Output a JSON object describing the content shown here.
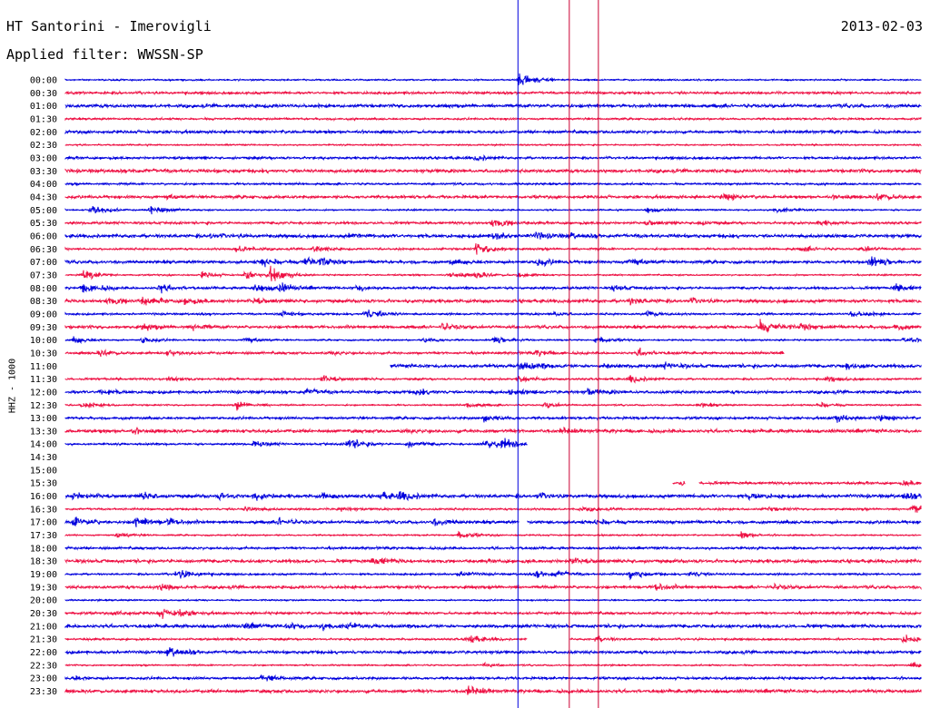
{
  "header": {
    "station": "HT Santorini - Imerovigli",
    "date": "2013-02-03",
    "filter": "Applied filter: WWSSN-SP"
  },
  "colors": {
    "even": "#0000dd",
    "odd": "#ee1144",
    "marker": "#cc0033",
    "background": "#ffffff"
  },
  "chart_data": {
    "type": "line",
    "ylabel": "HHZ - 1000",
    "rows": [
      {
        "t": "00:00",
        "ev": [
          [
            53,
            1.1
          ]
        ]
      },
      {
        "t": "00:30",
        "ev": []
      },
      {
        "t": "01:00",
        "ev": []
      },
      {
        "t": "01:30",
        "ev": []
      },
      {
        "t": "02:00",
        "ev": []
      },
      {
        "t": "02:30",
        "ev": []
      },
      {
        "t": "03:00",
        "ev": [
          [
            48,
            0.4
          ]
        ]
      },
      {
        "t": "03:30",
        "ev": [
          [
            8,
            0.3
          ]
        ]
      },
      {
        "t": "04:00",
        "ev": []
      },
      {
        "t": "04:30",
        "ev": [
          [
            12,
            0.4
          ],
          [
            77,
            0.5
          ],
          [
            90,
            0.4
          ],
          [
            95,
            0.6
          ]
        ]
      },
      {
        "t": "05:00",
        "ev": [
          [
            3,
            0.9
          ],
          [
            10,
            0.8
          ],
          [
            68,
            0.5
          ],
          [
            83,
            0.6
          ]
        ]
      },
      {
        "t": "05:30",
        "ev": [
          [
            50,
            0.8
          ],
          [
            68,
            0.4
          ],
          [
            74,
            0.4
          ],
          [
            88,
            0.4
          ]
        ]
      },
      {
        "t": "06:00",
        "ev": [
          [
            17,
            0.4
          ],
          [
            33,
            0.4
          ],
          [
            50,
            0.6
          ],
          [
            55,
            0.5
          ],
          [
            59,
            0.4
          ]
        ]
      },
      {
        "t": "06:30",
        "ev": [
          [
            20,
            0.7
          ],
          [
            29,
            0.6
          ],
          [
            48,
            0.9
          ],
          [
            86,
            0.5
          ],
          [
            93,
            0.5
          ]
        ]
      },
      {
        "t": "07:00",
        "ev": [
          [
            23,
            0.7
          ],
          [
            28,
            0.7
          ],
          [
            30,
            0.5
          ],
          [
            45,
            0.5
          ],
          [
            55,
            0.6
          ],
          [
            66,
            0.7
          ],
          [
            94,
            0.8
          ]
        ]
      },
      {
        "t": "07:30",
        "ev": [
          [
            2,
            0.8
          ],
          [
            16,
            0.5
          ],
          [
            21,
            0.7
          ],
          [
            24,
            1.0
          ],
          [
            45,
            0.6
          ],
          [
            48,
            0.6
          ],
          [
            53,
            0.5
          ]
        ]
      },
      {
        "t": "08:00",
        "ev": [
          [
            2,
            0.9
          ],
          [
            11,
            0.6
          ],
          [
            22,
            0.8
          ],
          [
            25,
            0.7
          ],
          [
            34,
            0.5
          ],
          [
            64,
            0.5
          ],
          [
            97,
            0.6
          ]
        ]
      },
      {
        "t": "08:30",
        "ev": [
          [
            5,
            0.6
          ],
          [
            9,
            0.5
          ],
          [
            14,
            0.5
          ],
          [
            22,
            0.4
          ],
          [
            66,
            0.6
          ],
          [
            73,
            0.4
          ]
        ]
      },
      {
        "t": "09:00",
        "ev": [
          [
            25,
            0.5
          ],
          [
            35,
            0.9
          ],
          [
            57,
            0.4
          ],
          [
            68,
            0.5
          ],
          [
            92,
            0.6
          ]
        ]
      },
      {
        "t": "09:30",
        "ev": [
          [
            9,
            0.5
          ],
          [
            15,
            0.5
          ],
          [
            44,
            0.6
          ],
          [
            81,
            1.0
          ],
          [
            86,
            0.6
          ],
          [
            97,
            0.5
          ]
        ]
      },
      {
        "t": "10:00",
        "ev": [
          [
            1,
            0.6
          ],
          [
            9,
            0.5
          ],
          [
            21,
            0.6
          ],
          [
            42,
            0.5
          ],
          [
            50,
            0.6
          ],
          [
            62,
            0.6
          ],
          [
            98,
            0.6
          ]
        ]
      },
      {
        "t": "10:30",
        "ev": [
          [
            4,
            0.5
          ],
          [
            12,
            0.5
          ],
          [
            31,
            0.4
          ],
          [
            55,
            0.5
          ],
          [
            67,
            0.6
          ]
        ],
        "gaps": [
          [
            84,
            100
          ]
        ]
      },
      {
        "t": "11:00",
        "ev": [
          [
            53,
            0.8
          ],
          [
            63,
            0.4
          ],
          [
            70,
            0.5
          ],
          [
            91,
            0.6
          ]
        ],
        "gaps": [
          [
            0,
            38
          ]
        ]
      },
      {
        "t": "11:30",
        "ev": [
          [
            12,
            0.5
          ],
          [
            30,
            0.6
          ],
          [
            53,
            0.5
          ],
          [
            66,
            0.6
          ],
          [
            89,
            0.5
          ]
        ]
      },
      {
        "t": "12:00",
        "ev": [
          [
            4,
            0.5
          ],
          [
            28,
            0.5
          ],
          [
            41,
            0.5
          ],
          [
            52,
            0.6
          ],
          [
            61,
            0.6
          ]
        ]
      },
      {
        "t": "12:30",
        "ev": [
          [
            2,
            0.6
          ],
          [
            20,
            0.7
          ],
          [
            47,
            0.5
          ],
          [
            56,
            0.5
          ],
          [
            74,
            0.4
          ],
          [
            88,
            0.5
          ]
        ]
      },
      {
        "t": "13:00",
        "ev": [
          [
            49,
            0.6
          ],
          [
            90,
            0.6
          ],
          [
            95,
            0.5
          ]
        ]
      },
      {
        "t": "13:30",
        "ev": [
          [
            8,
            0.4
          ],
          [
            40,
            0.3
          ],
          [
            58,
            0.4
          ]
        ]
      },
      {
        "t": "14:00",
        "ev": [
          [
            22,
            0.5
          ],
          [
            33,
            0.9
          ],
          [
            40,
            0.6
          ],
          [
            49,
            0.9
          ],
          [
            51,
            0.7
          ]
        ],
        "gaps": [
          [
            54,
            100
          ]
        ]
      },
      {
        "t": "14:30",
        "ev": [],
        "gaps": [
          [
            0,
            100
          ]
        ]
      },
      {
        "t": "15:00",
        "ev": [],
        "gaps": [
          [
            0,
            100
          ]
        ]
      },
      {
        "t": "15:30",
        "ev": [
          [
            72,
            0.4
          ],
          [
            98,
            0.4
          ]
        ],
        "gaps": [
          [
            0,
            71
          ],
          [
            72.5,
            74
          ]
        ]
      },
      {
        "t": "16:00",
        "ev": [
          [
            1,
            0.6
          ],
          [
            9,
            0.5
          ],
          [
            18,
            0.5
          ],
          [
            22,
            0.5
          ],
          [
            30,
            0.5
          ],
          [
            37,
            0.5
          ],
          [
            39,
            0.6
          ],
          [
            55,
            0.5
          ],
          [
            80,
            0.5
          ],
          [
            98,
            0.5
          ]
        ]
      },
      {
        "t": "16:30",
        "ev": [
          [
            21,
            0.5
          ],
          [
            32,
            0.4
          ],
          [
            60,
            0.4
          ],
          [
            82,
            0.4
          ],
          [
            99,
            0.7
          ]
        ]
      },
      {
        "t": "17:00",
        "ev": [
          [
            1,
            0.8
          ],
          [
            8,
            0.9
          ],
          [
            12,
            0.6
          ],
          [
            25,
            0.6
          ],
          [
            43,
            0.6
          ],
          [
            62,
            0.5
          ]
        ],
        "gaps": [
          [
            53,
            54
          ]
        ]
      },
      {
        "t": "17:30",
        "ev": [
          [
            6,
            0.5
          ],
          [
            46,
            0.6
          ],
          [
            79,
            0.5
          ]
        ]
      },
      {
        "t": "18:00",
        "ev": []
      },
      {
        "t": "18:30",
        "ev": [
          [
            36,
            0.6
          ],
          [
            59,
            0.5
          ]
        ]
      },
      {
        "t": "19:00",
        "ev": [
          [
            13,
            0.8
          ],
          [
            46,
            0.5
          ],
          [
            55,
            0.5
          ],
          [
            57,
            0.6
          ],
          [
            66,
            0.7
          ],
          [
            73,
            0.5
          ]
        ]
      },
      {
        "t": "19:30",
        "ev": [
          [
            11,
            0.6
          ],
          [
            69,
            0.6
          ],
          [
            83,
            0.4
          ]
        ]
      },
      {
        "t": "20:00",
        "ev": []
      },
      {
        "t": "20:30",
        "ev": [
          [
            6,
            0.4
          ],
          [
            11,
            0.7
          ],
          [
            13,
            0.6
          ]
        ]
      },
      {
        "t": "21:00",
        "ev": [
          [
            21,
            0.4
          ],
          [
            26,
            0.5
          ],
          [
            30,
            0.5
          ],
          [
            33,
            0.4
          ]
        ]
      },
      {
        "t": "21:30",
        "ev": [
          [
            47,
            0.7
          ],
          [
            62,
            0.5
          ],
          [
            98,
            0.6
          ]
        ],
        "gaps": [
          [
            54,
            59
          ]
        ]
      },
      {
        "t": "22:00",
        "ev": [
          [
            12,
            0.8
          ]
        ]
      },
      {
        "t": "22:30",
        "ev": [
          [
            49,
            0.4
          ],
          [
            99,
            0.5
          ]
        ]
      },
      {
        "t": "23:00",
        "ev": [
          [
            1,
            0.3
          ],
          [
            23,
            0.6
          ]
        ]
      },
      {
        "t": "23:30",
        "ev": [
          [
            47,
            0.7
          ]
        ]
      }
    ],
    "markers_percent": [
      52.9,
      58.9,
      62.3
    ]
  }
}
